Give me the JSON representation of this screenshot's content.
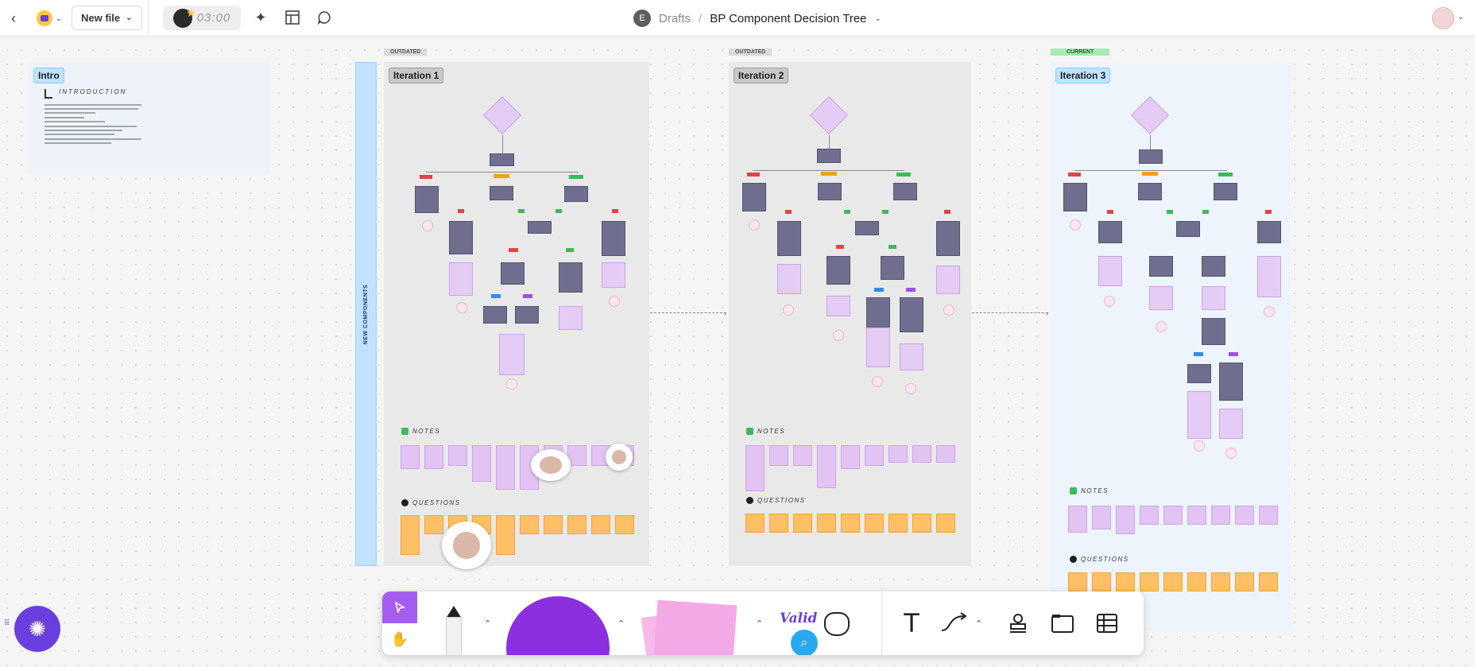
{
  "topbar": {
    "new_file_label": "New file",
    "timer": "03:00",
    "workspace_initial": "E",
    "breadcrumb_drafts": "Drafts",
    "breadcrumb_separator": "/",
    "file_title": "BP Component Decision Tree"
  },
  "canvas": {
    "intro": {
      "label": "Intro",
      "heading": "INTRODUCTION"
    },
    "side_label": "NEW COMPONENTS",
    "iterations": [
      {
        "label": "Iteration 1",
        "status": "OUTDATED"
      },
      {
        "label": "Iteration 2",
        "status": "OUTDATED"
      },
      {
        "label": "Iteration 3",
        "status": "CURRENT"
      }
    ],
    "notes_label": "NOTES",
    "questions_label": "QUESTIONS"
  },
  "toolbar": {
    "tools": [
      "select-tool",
      "hand-tool",
      "pen-tool",
      "shape-tool",
      "sticky-tool",
      "stickers",
      "text-tool",
      "connector-tool",
      "stamp-tool",
      "section-tool",
      "table-tool"
    ],
    "sticker_text": "Valid"
  },
  "colors": {
    "accent": "#a45df0",
    "ai_button": "#6a3fe0",
    "frame_label_blue": "#bfe3ff",
    "status_current": "#a6ecb6",
    "node_dark": "#6f6e8f",
    "node_light": "#e4ccf5",
    "note_purple": "#e2c3f3",
    "question_orange": "#ffbf66"
  }
}
